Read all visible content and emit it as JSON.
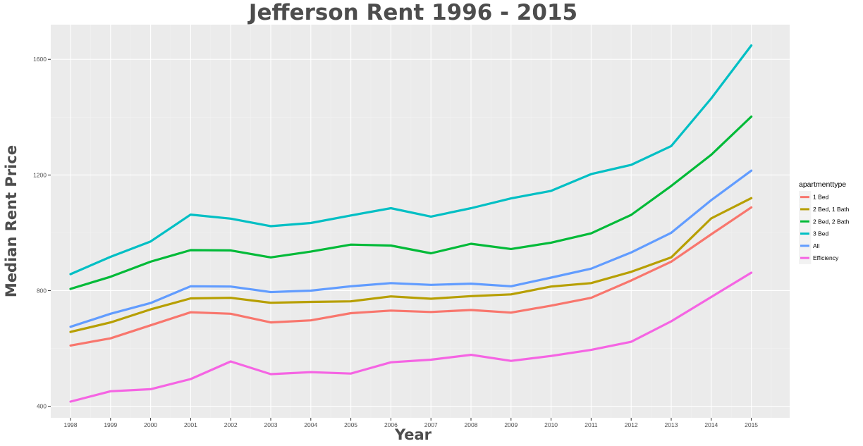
{
  "chart_data": {
    "type": "line",
    "title": "Jefferson Rent 1996 - 2015",
    "xlabel": "Year",
    "ylabel": "Median Rent Price",
    "x": [
      "1998",
      "1999",
      "2000",
      "2001",
      "2002",
      "2003",
      "2004",
      "2005",
      "2006",
      "2007",
      "2008",
      "2009",
      "2010",
      "2011",
      "2012",
      "2013",
      "2014",
      "2015"
    ],
    "ylim": [
      360,
      1720
    ],
    "yticks": [
      "400",
      "800",
      "1200",
      "1600"
    ],
    "grid": true,
    "legend_title": "apartmenttype",
    "legend_position": "right",
    "series": [
      {
        "name": "1 Bed",
        "color": "#F8766D",
        "values": [
          610,
          635,
          680,
          725,
          720,
          690,
          697,
          722,
          731,
          726,
          733,
          724,
          748,
          775,
          835,
          900,
          995,
          1088
        ]
      },
      {
        "name": "2 Bed, 1 Bath",
        "color": "#B79F00",
        "values": [
          657,
          690,
          735,
          773,
          775,
          758,
          761,
          763,
          780,
          772,
          781,
          787,
          814,
          826,
          865,
          915,
          1050,
          1120
        ]
      },
      {
        "name": "2 Bed, 2 Bath",
        "color": "#00BA38",
        "values": [
          806,
          848,
          900,
          940,
          939,
          915,
          935,
          959,
          956,
          929,
          962,
          944,
          966,
          998,
          1062,
          1162,
          1270,
          1402
        ]
      },
      {
        "name": "3 Bed",
        "color": "#00BFC4",
        "values": [
          857,
          917,
          970,
          1063,
          1049,
          1023,
          1034,
          1060,
          1085,
          1056,
          1085,
          1119,
          1145,
          1203,
          1235,
          1300,
          1465,
          1648
        ]
      },
      {
        "name": "All",
        "color": "#619CFF",
        "values": [
          675,
          720,
          757,
          815,
          814,
          795,
          800,
          815,
          826,
          820,
          824,
          815,
          845,
          876,
          932,
          1000,
          1113,
          1215
        ]
      },
      {
        "name": "Efficiency",
        "color": "#F564E3",
        "values": [
          416,
          452,
          459,
          494,
          555,
          511,
          518,
          513,
          552,
          561,
          578,
          557,
          574,
          595,
          623,
          694,
          778,
          862
        ]
      }
    ]
  }
}
